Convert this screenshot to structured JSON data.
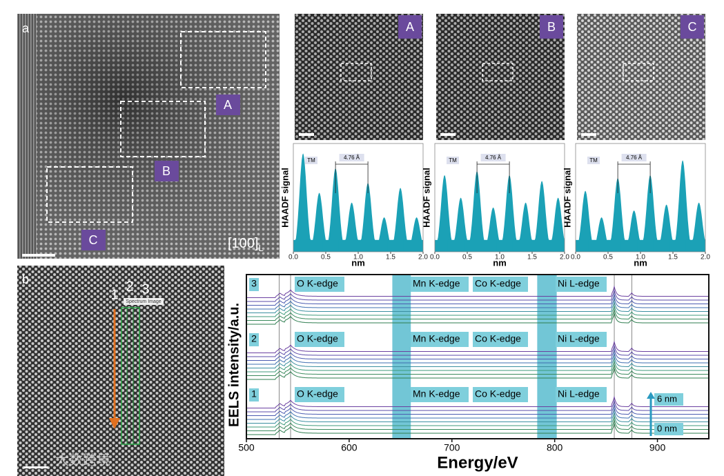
{
  "panel_a": {
    "label": "a",
    "regions": [
      "A",
      "B",
      "C"
    ],
    "zone_axis": "[100]",
    "zone_sub": "L"
  },
  "insets": [
    "A",
    "B",
    "C"
  ],
  "profiles": {
    "ylabel": "HAADF signal",
    "xlabel": "nm",
    "xlim": [
      0,
      2
    ],
    "ylim": [
      0,
      1.1
    ],
    "xticks": [
      {
        "value": 0,
        "label": "0.0"
      },
      {
        "value": 0.5,
        "label": "0.5"
      },
      {
        "value": 1,
        "label": "1.0"
      },
      {
        "value": 1.5,
        "label": "1.5"
      },
      {
        "value": 2,
        "label": "2.0"
      }
    ],
    "peak_label": "TM",
    "spacing_label": "4.76 Å",
    "color": "#1ba1b6",
    "series": [
      {
        "peaks_x": [
          0.15,
          0.4,
          0.65,
          0.9,
          1.15,
          1.4,
          1.65,
          1.9
        ],
        "peaks_y": [
          1.0,
          0.6,
          0.85,
          0.5,
          0.7,
          0.35,
          0.65,
          0.35
        ]
      },
      {
        "peaks_x": [
          0.15,
          0.4,
          0.65,
          0.9,
          1.15,
          1.4,
          1.65,
          1.9
        ],
        "peaks_y": [
          0.78,
          0.55,
          0.82,
          0.45,
          0.78,
          0.5,
          0.72,
          0.55
        ]
      },
      {
        "peaks_x": [
          0.15,
          0.4,
          0.65,
          0.9,
          1.15,
          1.4,
          1.65,
          1.9
        ],
        "peaks_y": [
          0.62,
          0.35,
          0.75,
          0.42,
          0.78,
          0.48,
          0.93,
          0.5
        ]
      }
    ]
  },
  "panel_b": {
    "label": "b",
    "columns": [
      "1",
      "2",
      "3"
    ],
    "box_label": "Spectrum Image"
  },
  "chart_data": {
    "type": "line",
    "xlabel": "Energy/eV",
    "ylabel": "EELS intensity/a.u.",
    "xlim": [
      500,
      950
    ],
    "xticks": [
      500,
      600,
      700,
      800,
      900
    ],
    "edges": [
      532,
      543,
      858,
      875
    ],
    "bands": [
      [
        642,
        660
      ],
      [
        783,
        802
      ]
    ],
    "groups": [
      "3",
      "2",
      "1"
    ],
    "edge_labels": [
      "O K-edge",
      "Mn K-edge",
      "Co K-edge",
      "Ni L-edge"
    ],
    "depth_labels": [
      "6 nm",
      "0 nm"
    ],
    "colors": [
      "#2e7d4f",
      "#3a8a5c",
      "#3c9a7a",
      "#3a8fa0",
      "#3d6fb0",
      "#4a5ab0",
      "#5a4aa8",
      "#6a3fa0"
    ]
  },
  "watermark": "大数跨境"
}
